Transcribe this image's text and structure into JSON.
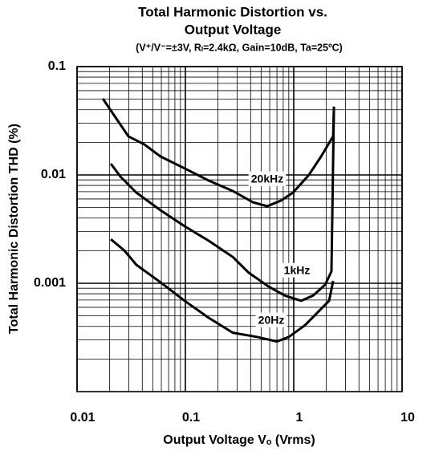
{
  "chart_data": {
    "type": "line",
    "title": [
      "Total Harmonic Distortion vs.",
      "Output Voltage"
    ],
    "subtitle": "(V⁺/V⁻=±3V, Rₗ=2.4kΩ, Gain=10dB, Ta=25ºC)",
    "x_label": "Output Voltage Vₒ (Vrms)",
    "y_label": "Total Harmonic Distortion THD (%)",
    "xscale": "log",
    "yscale": "log",
    "xlim": [
      0.01,
      10
    ],
    "ylim": [
      0.0001,
      0.1
    ],
    "xticks": [
      0.01,
      0.1,
      1,
      10
    ],
    "yticks": [
      0.001,
      0.01,
      0.1
    ],
    "grid": true,
    "color": "#000000",
    "series": [
      {
        "name": "20kHz",
        "color": "#000000",
        "x": [
          0.0173,
          0.0231,
          0.0298,
          0.0419,
          0.0589,
          0.0983,
          0.164,
          0.274,
          0.419,
          0.57,
          0.761,
          0.984,
          1.38,
          1.79,
          2.31,
          2.35
        ],
        "values": [
          0.0506,
          0.033,
          0.0227,
          0.0191,
          0.0148,
          0.0115,
          0.00887,
          0.00711,
          0.0056,
          0.00514,
          0.00579,
          0.00687,
          0.01,
          0.0148,
          0.0227,
          0.0427
        ]
      },
      {
        "name": "1kHz",
        "color": "#000000",
        "x": [
          0.0205,
          0.0251,
          0.0353,
          0.0589,
          0.0983,
          0.164,
          0.274,
          0.385,
          0.589,
          0.829,
          1.17,
          1.51,
          1.95,
          2.23,
          2.35
        ],
        "values": [
          0.0127,
          0.00966,
          0.00687,
          0.00472,
          0.00336,
          0.00247,
          0.00175,
          0.00125,
          0.00093,
          0.00077,
          0.00069,
          0.00077,
          0.00097,
          0.00129,
          0.0427
        ]
      },
      {
        "name": "20Hz",
        "color": "#000000",
        "x": [
          0.0205,
          0.0273,
          0.0353,
          0.0589,
          0.0983,
          0.164,
          0.274,
          0.456,
          0.699,
          0.903,
          1.27,
          1.79,
          2.12,
          2.31
        ],
        "values": [
          0.00255,
          0.00201,
          0.00148,
          0.00102,
          0.00069,
          0.00048,
          0.00035,
          0.00032,
          0.00029,
          0.00032,
          0.00041,
          0.00058,
          0.00069,
          0.00105
        ]
      }
    ]
  }
}
